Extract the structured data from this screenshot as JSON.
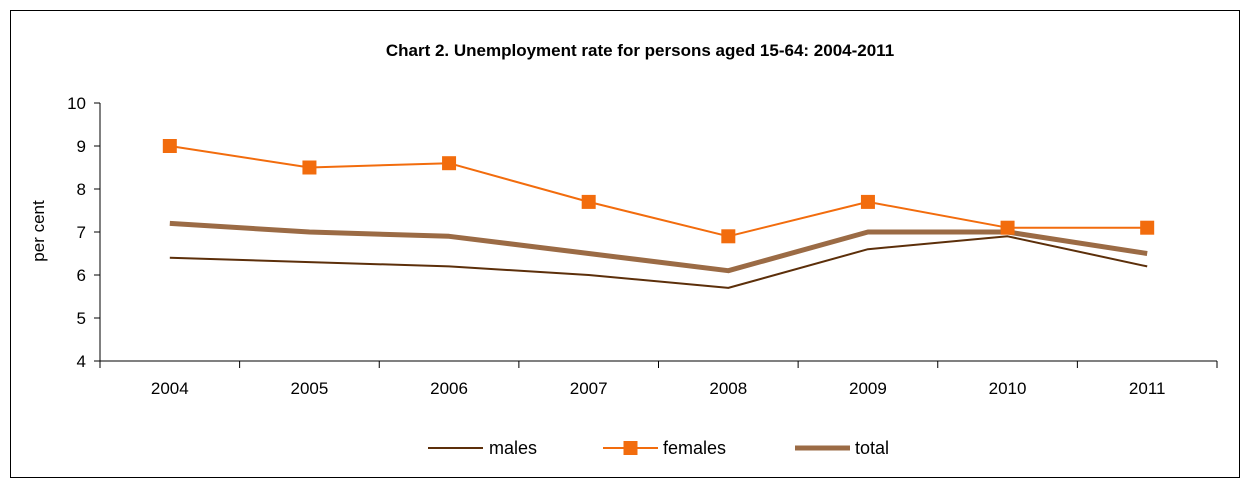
{
  "chart_data": {
    "type": "line",
    "title": "Chart 2. Unemployment rate for persons aged 15-64: 2004-2011",
    "xlabel": "",
    "ylabel": "per cent",
    "ylim": [
      4,
      10
    ],
    "yticks": [
      4,
      5,
      6,
      7,
      8,
      9,
      10
    ],
    "categories": [
      "2004",
      "2005",
      "2006",
      "2007",
      "2008",
      "2009",
      "2010",
      "2011"
    ],
    "grid": false,
    "legend_position": "bottom",
    "series": [
      {
        "name": "males",
        "values": [
          6.4,
          6.3,
          6.2,
          6.0,
          5.7,
          6.6,
          6.9,
          6.2
        ],
        "color": "#5c2f0a",
        "marker": "none"
      },
      {
        "name": "females",
        "values": [
          9.0,
          8.5,
          8.6,
          7.7,
          6.9,
          7.7,
          7.1,
          7.1
        ],
        "color": "#f26c0d",
        "marker": "square"
      },
      {
        "name": "total",
        "values": [
          7.2,
          7.0,
          6.9,
          6.5,
          6.1,
          7.0,
          7.0,
          6.5
        ],
        "color": "#9b6b45",
        "marker": "none"
      }
    ]
  }
}
